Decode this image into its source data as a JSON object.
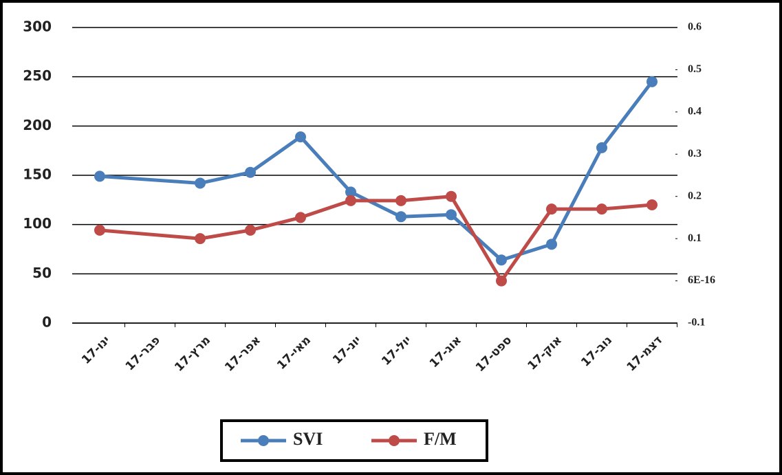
{
  "chart_data": {
    "type": "line",
    "categories": [
      "ינו-17",
      "פבר-17",
      "מרץ-17",
      "אפר-17",
      "מאי-17",
      "יונ-17",
      "יול-17",
      "אוג-17",
      "ספט-17",
      "אוק-17",
      "נוב-17",
      "דצמ-17"
    ],
    "series": [
      {
        "name": "SVI",
        "color": "#4a7ebb",
        "values": [
          149,
          null,
          142,
          153,
          189,
          133,
          108,
          110,
          64,
          80,
          178,
          245
        ]
      },
      {
        "name": "F/M",
        "color": "#be4b48",
        "axis": "y2",
        "values": [
          0.12,
          null,
          0.1,
          0.12,
          0.15,
          0.19,
          0.19,
          0.2,
          0.0,
          0.17,
          0.17,
          0.18
        ]
      }
    ],
    "ylim": [
      0,
      300
    ],
    "yticks": [
      0,
      50,
      100,
      150,
      200,
      250,
      300
    ],
    "y2lim": [
      -0.1,
      0.6
    ],
    "y2ticks": [
      -0.1,
      {
        "value": 6e-16,
        "label": "6E-16"
      },
      0.1,
      0.2,
      0.3,
      0.4,
      0.5,
      0.6
    ],
    "grid": true,
    "connect_gaps": true,
    "legend": "bottom"
  }
}
